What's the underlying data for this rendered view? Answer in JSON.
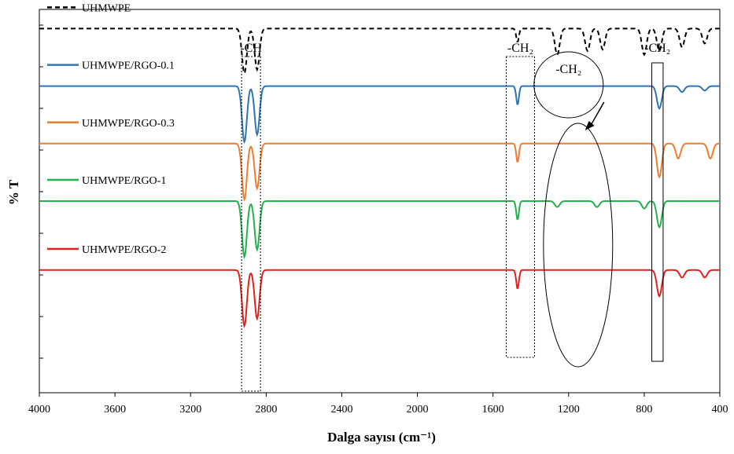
{
  "chart_data": {
    "type": "line",
    "xlabel": "Dalga sayısı (cm⁻¹)",
    "ylabel": "% T",
    "xlim": [
      4000,
      400
    ],
    "x_reversed": true,
    "xticks": [
      "4000",
      "3600",
      "3200",
      "2800",
      "2400",
      "2000",
      "1600",
      "1200",
      "800",
      "400"
    ],
    "y_tick_labels_shown": false,
    "grid": false,
    "legend_placement": "inline-left",
    "series": [
      {
        "name": "UHMWPE",
        "color": "#000000",
        "dash": "dashed",
        "baseline": 0.95,
        "features": [
          {
            "x": 2915,
            "depth": 0.6
          },
          {
            "x": 2848,
            "depth": 0.55
          },
          {
            "x": 1470,
            "depth": 0.18
          },
          {
            "x": 1260,
            "depth": 0.35
          },
          {
            "x": 1100,
            "depth": 0.3
          },
          {
            "x": 1020,
            "depth": 0.28
          },
          {
            "x": 800,
            "depth": 0.35
          },
          {
            "x": 720,
            "depth": 0.3
          },
          {
            "x": 600,
            "depth": 0.25
          },
          {
            "x": 480,
            "depth": 0.2
          }
        ]
      },
      {
        "name": "UHMWPE/RGO-0.1",
        "color": "#2e75b6",
        "dash": "solid",
        "baseline": 0.8,
        "features": [
          {
            "x": 2915,
            "depth": 0.75
          },
          {
            "x": 2848,
            "depth": 0.65
          },
          {
            "x": 1470,
            "depth": 0.25
          },
          {
            "x": 720,
            "depth": 0.3
          },
          {
            "x": 600,
            "depth": 0.08
          },
          {
            "x": 480,
            "depth": 0.06
          }
        ]
      },
      {
        "name": "UHMWPE/RGO-0.3",
        "color": "#ed7d31",
        "dash": "solid",
        "baseline": 0.65,
        "features": [
          {
            "x": 2915,
            "depth": 0.75
          },
          {
            "x": 2848,
            "depth": 0.6
          },
          {
            "x": 1470,
            "depth": 0.25
          },
          {
            "x": 720,
            "depth": 0.45
          },
          {
            "x": 620,
            "depth": 0.2
          },
          {
            "x": 450,
            "depth": 0.2
          }
        ]
      },
      {
        "name": "UHMWPE/RGO-1",
        "color": "#22b14c",
        "dash": "solid",
        "baseline": 0.5,
        "features": [
          {
            "x": 2915,
            "depth": 0.75
          },
          {
            "x": 2848,
            "depth": 0.65
          },
          {
            "x": 1470,
            "depth": 0.25
          },
          {
            "x": 1260,
            "depth": 0.08
          },
          {
            "x": 1050,
            "depth": 0.08
          },
          {
            "x": 800,
            "depth": 0.1
          },
          {
            "x": 720,
            "depth": 0.35
          }
        ]
      },
      {
        "name": "UHMWPE/RGO-2",
        "color": "#e3211c",
        "dash": "solid",
        "baseline": 0.32,
        "features": [
          {
            "x": 2915,
            "depth": 0.75
          },
          {
            "x": 2848,
            "depth": 0.65
          },
          {
            "x": 1470,
            "depth": 0.25
          },
          {
            "x": 720,
            "depth": 0.35
          },
          {
            "x": 600,
            "depth": 0.1
          },
          {
            "x": 480,
            "depth": 0.1
          }
        ]
      }
    ],
    "annotations": [
      {
        "text": "-CH",
        "x_range": [
          2930,
          2830
        ],
        "box": "dotted"
      },
      {
        "text": "-CH₂",
        "x_range": [
          1530,
          1380
        ],
        "box": "dotted"
      },
      {
        "text": "-CH₂",
        "x_range": [
          760,
          700
        ],
        "box": "solid"
      },
      {
        "text": "-CH₂",
        "x_center": 1200,
        "shape": "circle",
        "arrow_to": 1130
      },
      {
        "shape": "ellipse",
        "x_center": 1150
      }
    ]
  }
}
